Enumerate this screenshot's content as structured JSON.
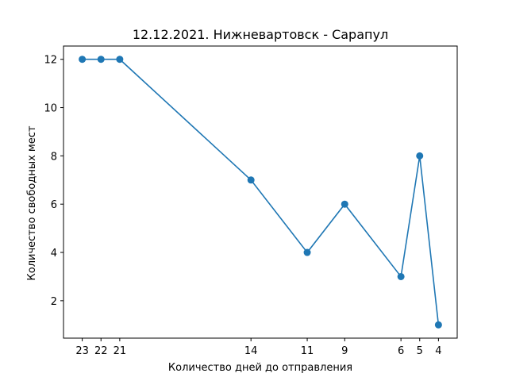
{
  "chart_data": {
    "type": "line",
    "title": "12.12.2021. Нижневартовск - Сарапул",
    "xlabel": "Количество дней до отправления",
    "ylabel": "Количество свободных мест",
    "x": [
      23,
      22,
      21,
      14,
      11,
      9,
      6,
      5,
      4
    ],
    "x_tick_labels": [
      "23",
      "22",
      "21",
      "14",
      "11",
      "9",
      "6",
      "5",
      "4"
    ],
    "x_axis_inverted": true,
    "xlim": [
      24,
      3
    ],
    "series": [
      {
        "values": [
          12,
          12,
          12,
          7,
          4,
          6,
          3,
          8,
          1
        ],
        "color": "#1f77b4"
      }
    ],
    "y_ticks": [
      2,
      4,
      6,
      8,
      10,
      12
    ],
    "ylim": [
      0.45,
      12.55
    ],
    "grid": false,
    "legend": false
  }
}
